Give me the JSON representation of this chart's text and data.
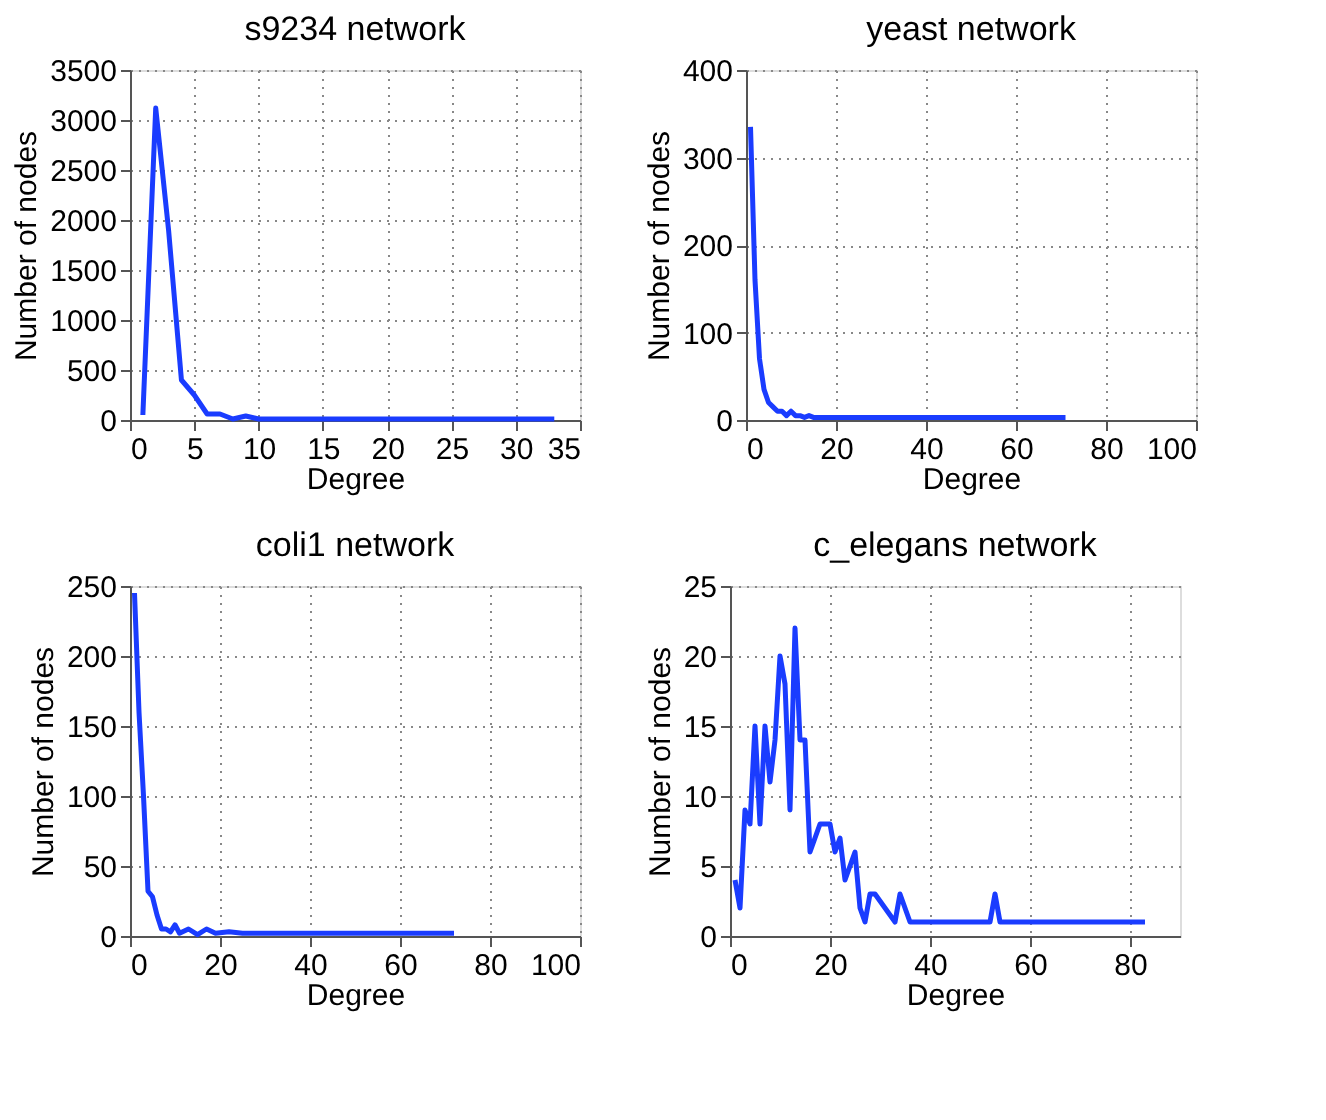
{
  "chart_data": [
    {
      "type": "line",
      "title": "s9234 network",
      "xlabel": "Degree",
      "ylabel": "Number of nodes",
      "color": "#1a3cff",
      "grid": true,
      "xlim": [
        0,
        35
      ],
      "xticks": [
        0,
        5,
        10,
        15,
        20,
        25,
        30,
        35
      ],
      "ylim": [
        0,
        3500
      ],
      "yticks": [
        0,
        500,
        1000,
        1500,
        2000,
        2500,
        3000,
        3500
      ],
      "x": [
        1,
        2,
        3,
        4,
        5,
        6,
        7,
        8,
        9,
        10,
        33
      ],
      "values": [
        50,
        3120,
        1900,
        400,
        250,
        60,
        60,
        10,
        40,
        10,
        10
      ]
    },
    {
      "type": "line",
      "title": "yeast network",
      "xlabel": "Degree",
      "ylabel": "Number of nodes",
      "color": "#1a3cff",
      "grid": true,
      "xlim": [
        0,
        100
      ],
      "xticks": [
        0,
        20,
        40,
        60,
        80,
        100
      ],
      "ylim": [
        0,
        400
      ],
      "yticks": [
        0,
        100,
        200,
        300,
        400
      ],
      "x": [
        1,
        2,
        3,
        4,
        5,
        6,
        7,
        8,
        9,
        10,
        11,
        12,
        13,
        14,
        15,
        20,
        71
      ],
      "values": [
        335,
        160,
        70,
        35,
        20,
        15,
        10,
        10,
        5,
        10,
        5,
        5,
        3,
        5,
        3,
        3,
        3
      ]
    },
    {
      "type": "line",
      "title": "coli1 network",
      "xlabel": "Degree",
      "ylabel": "Number of nodes",
      "color": "#1a3cff",
      "grid": true,
      "xlim": [
        0,
        100
      ],
      "xticks": [
        0,
        20,
        40,
        60,
        80,
        100
      ],
      "ylim": [
        0,
        250
      ],
      "yticks": [
        0,
        50,
        100,
        150,
        200,
        250
      ],
      "x": [
        1,
        2,
        3,
        4,
        5,
        6,
        7,
        8,
        9,
        10,
        11,
        13,
        15,
        17,
        19,
        22,
        25,
        72
      ],
      "values": [
        245,
        160,
        100,
        32,
        28,
        15,
        5,
        5,
        3,
        8,
        2,
        5,
        1,
        5,
        2,
        3,
        2,
        2
      ]
    },
    {
      "type": "line",
      "title": "c_elegans network",
      "xlabel": "Degree",
      "ylabel": "Number of nodes",
      "color": "#1a3cff",
      "grid": true,
      "xlim": [
        0,
        90
      ],
      "xticks": [
        0,
        20,
        40,
        60,
        80
      ],
      "ylim": [
        0,
        25
      ],
      "yticks": [
        0,
        5,
        10,
        15,
        20,
        25
      ],
      "x": [
        1,
        2,
        3,
        4,
        5,
        6,
        7,
        8,
        9,
        10,
        11,
        12,
        13,
        14,
        15,
        16,
        17,
        18,
        19,
        20,
        21,
        22,
        23,
        24,
        25,
        26,
        27,
        28,
        29,
        33,
        34,
        36,
        52,
        53,
        54,
        83
      ],
      "values": [
        4,
        2,
        9,
        8,
        15,
        8,
        15,
        11,
        14,
        20,
        18,
        9,
        22,
        14,
        14,
        6,
        7,
        8,
        8,
        8,
        6,
        7,
        4,
        5,
        6,
        2,
        1,
        3,
        3,
        1,
        3,
        1,
        1,
        3,
        1,
        1
      ]
    }
  ]
}
